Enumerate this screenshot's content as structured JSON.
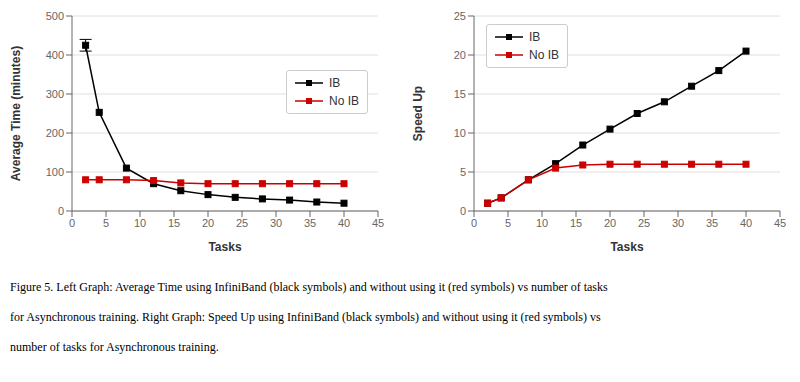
{
  "chart_data": [
    {
      "type": "line",
      "xlabel": "Tasks",
      "ylabel": "Average Time (minutes)",
      "x": [
        2,
        4,
        8,
        12,
        16,
        20,
        24,
        28,
        32,
        36,
        40
      ],
      "series": [
        {
          "name": "IB",
          "color": "#000000",
          "marker": "square",
          "values": [
            425,
            253,
            110,
            70,
            52,
            42,
            35,
            31,
            28,
            23,
            20
          ],
          "errors": [
            15,
            0,
            0,
            0,
            0,
            0,
            0,
            0,
            0,
            0,
            0
          ]
        },
        {
          "name": "No IB",
          "color": "#cc0000",
          "marker": "square",
          "values": [
            80,
            80,
            80,
            78,
            72,
            70,
            70,
            70,
            70,
            70,
            70
          ]
        }
      ],
      "xlim": [
        0,
        45
      ],
      "ylim": [
        0,
        500
      ],
      "xticks": [
        0,
        5,
        10,
        15,
        20,
        25,
        30,
        35,
        40,
        45
      ],
      "yticks": [
        0,
        100,
        200,
        300,
        400,
        500
      ],
      "grid": true,
      "legend": "center right"
    },
    {
      "type": "line",
      "xlabel": "Tasks",
      "ylabel": "Speed Up",
      "x": [
        2,
        4,
        8,
        12,
        16,
        20,
        24,
        28,
        32,
        36,
        40
      ],
      "series": [
        {
          "name": "IB",
          "color": "#000000",
          "marker": "square",
          "values": [
            1.0,
            1.68,
            4.0,
            6.07,
            8.46,
            10.5,
            12.5,
            14.0,
            16.0,
            18.0,
            20.5
          ]
        },
        {
          "name": "No IB",
          "color": "#cc0000",
          "marker": "square",
          "values": [
            1.0,
            1.68,
            4.0,
            5.5,
            5.9,
            6.0,
            6.0,
            6.0,
            6.0,
            6.0,
            6.0
          ]
        }
      ],
      "xlim": [
        0,
        45
      ],
      "ylim": [
        0,
        25
      ],
      "xticks": [
        0,
        5,
        10,
        15,
        20,
        25,
        30,
        35,
        40,
        45
      ],
      "yticks": [
        0,
        5,
        10,
        15,
        20,
        25
      ],
      "grid": true,
      "legend": "upper left"
    }
  ],
  "annotations": [
    "Figure 5. Left Graph: Average Time using InfiniBand (black symbols) and without using it (red symbols) vs number of tasks",
    "for Asynchronous training. Right Graph: Speed Up using InfiniBand (black symbols) and without using it (red symbols) vs",
    "number of tasks for Asynchronous training."
  ]
}
